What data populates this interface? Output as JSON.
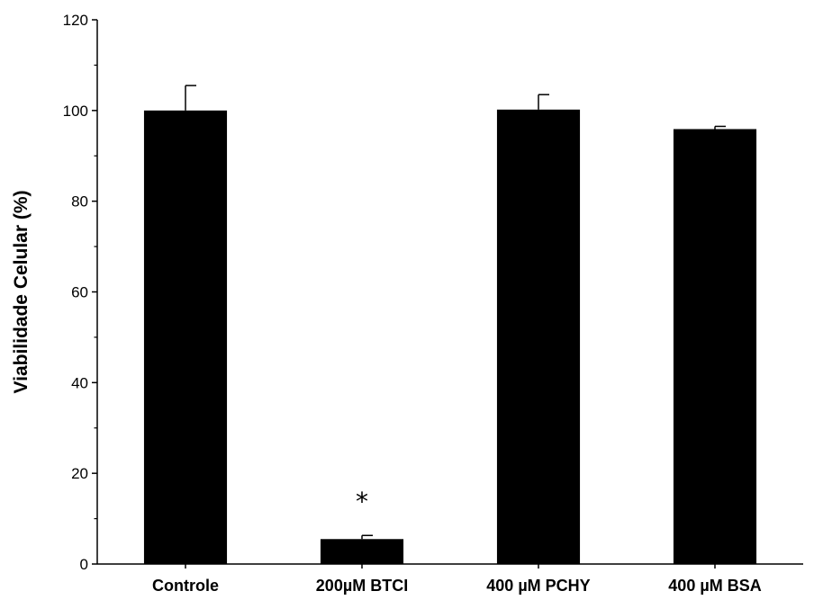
{
  "chart_data": {
    "type": "bar",
    "title": "",
    "xlabel": "",
    "ylabel": "Viabilidade Celular (%)",
    "categories": [
      "Controle",
      "200µM BTCI",
      "400 µM PCHY",
      "400 µM BSA"
    ],
    "values": [
      100,
      5.5,
      100.2,
      95.9
    ],
    "errors": [
      5.5,
      0.8,
      3.3,
      0.6
    ],
    "ylim": [
      0,
      120
    ],
    "yticks": [
      0,
      20,
      40,
      60,
      80,
      100,
      120
    ],
    "yticks_minor_step": 10,
    "grid": false,
    "legend": "none",
    "bar_color": "#000000",
    "annotations": [
      {
        "category_index": 1,
        "text": "*"
      }
    ]
  }
}
